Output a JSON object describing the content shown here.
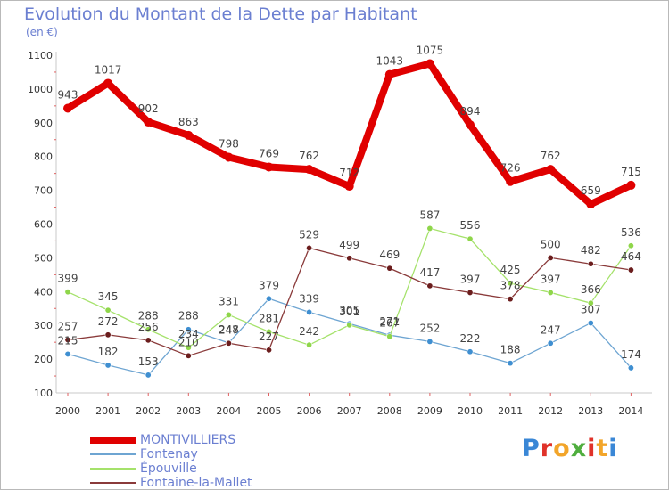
{
  "header": {
    "title": "Evolution du Montant de la Dette par Habitant",
    "subtitle": "(en €)"
  },
  "logo": {
    "text": "Proxiti",
    "letter_colors": [
      "#3a87d6",
      "#e0322a",
      "#f2a52a",
      "#4fae3e",
      "#e0322a",
      "#f2a52a",
      "#3a87d6"
    ]
  },
  "chart_data": {
    "type": "line",
    "title": "Evolution du Montant de la Dette par Habitant",
    "subtitle": "(en €)",
    "xlabel": "",
    "ylabel": "",
    "x": [
      "2000",
      "2001",
      "2002",
      "2003",
      "2004",
      "2005",
      "2006",
      "2007",
      "2008",
      "2009",
      "2010",
      "2011",
      "2012",
      "2013",
      "2014"
    ],
    "ylim": [
      100,
      1100
    ],
    "yticks": [
      "100",
      "200",
      "300",
      "400",
      "500",
      "600",
      "700",
      "800",
      "900",
      "1000",
      "1100"
    ],
    "grid": false,
    "legend_position": "bottom-left",
    "series": [
      {
        "name": "MONTIVILLIERS",
        "color": "#e00000",
        "marker": "#e00000",
        "values": [
          943,
          1017,
          902,
          863,
          798,
          769,
          762,
          712,
          1043,
          1075,
          894,
          726,
          762,
          659,
          715
        ],
        "labels": [
          "943",
          "1017",
          "902",
          "863",
          "798",
          "769",
          "762",
          "712",
          "1043",
          "1075",
          "894",
          "726",
          "762",
          "659",
          "715"
        ]
      },
      {
        "name": "Fontenay",
        "color": "#6ea5d2",
        "marker": "#3f8fd1",
        "values": [
          215,
          182,
          153,
          288,
          248,
          379,
          339,
          305,
          271,
          252,
          222,
          188,
          247,
          307,
          174
        ],
        "labels": [
          "215",
          "182",
          "153",
          "288",
          "248",
          "379",
          "339",
          "305",
          "271",
          "252",
          "222",
          "188",
          "247",
          "307",
          "174"
        ]
      },
      {
        "name": "Épouville",
        "color": "#a5e26b",
        "marker": "#8fd64a",
        "values": [
          399,
          345,
          288,
          234,
          331,
          281,
          242,
          301,
          267,
          587,
          556,
          425,
          397,
          366,
          536
        ],
        "labels": [
          "399",
          "345",
          "288",
          "234",
          "331",
          "281",
          "242",
          "301",
          "267",
          "587",
          "556",
          "425",
          "397",
          "366",
          "536"
        ]
      },
      {
        "name": "Fontaine-la-Mallet",
        "color": "#8a3a3a",
        "marker": "#6b1d1d",
        "values": [
          257,
          272,
          256,
          210,
          247,
          227,
          529,
          499,
          469,
          417,
          397,
          378,
          500,
          482,
          464
        ],
        "labels": [
          "257",
          "272",
          "256",
          "210",
          "247",
          "227",
          "529",
          "499",
          "469",
          "417",
          "397",
          "378",
          "500",
          "482",
          "464"
        ]
      }
    ]
  }
}
